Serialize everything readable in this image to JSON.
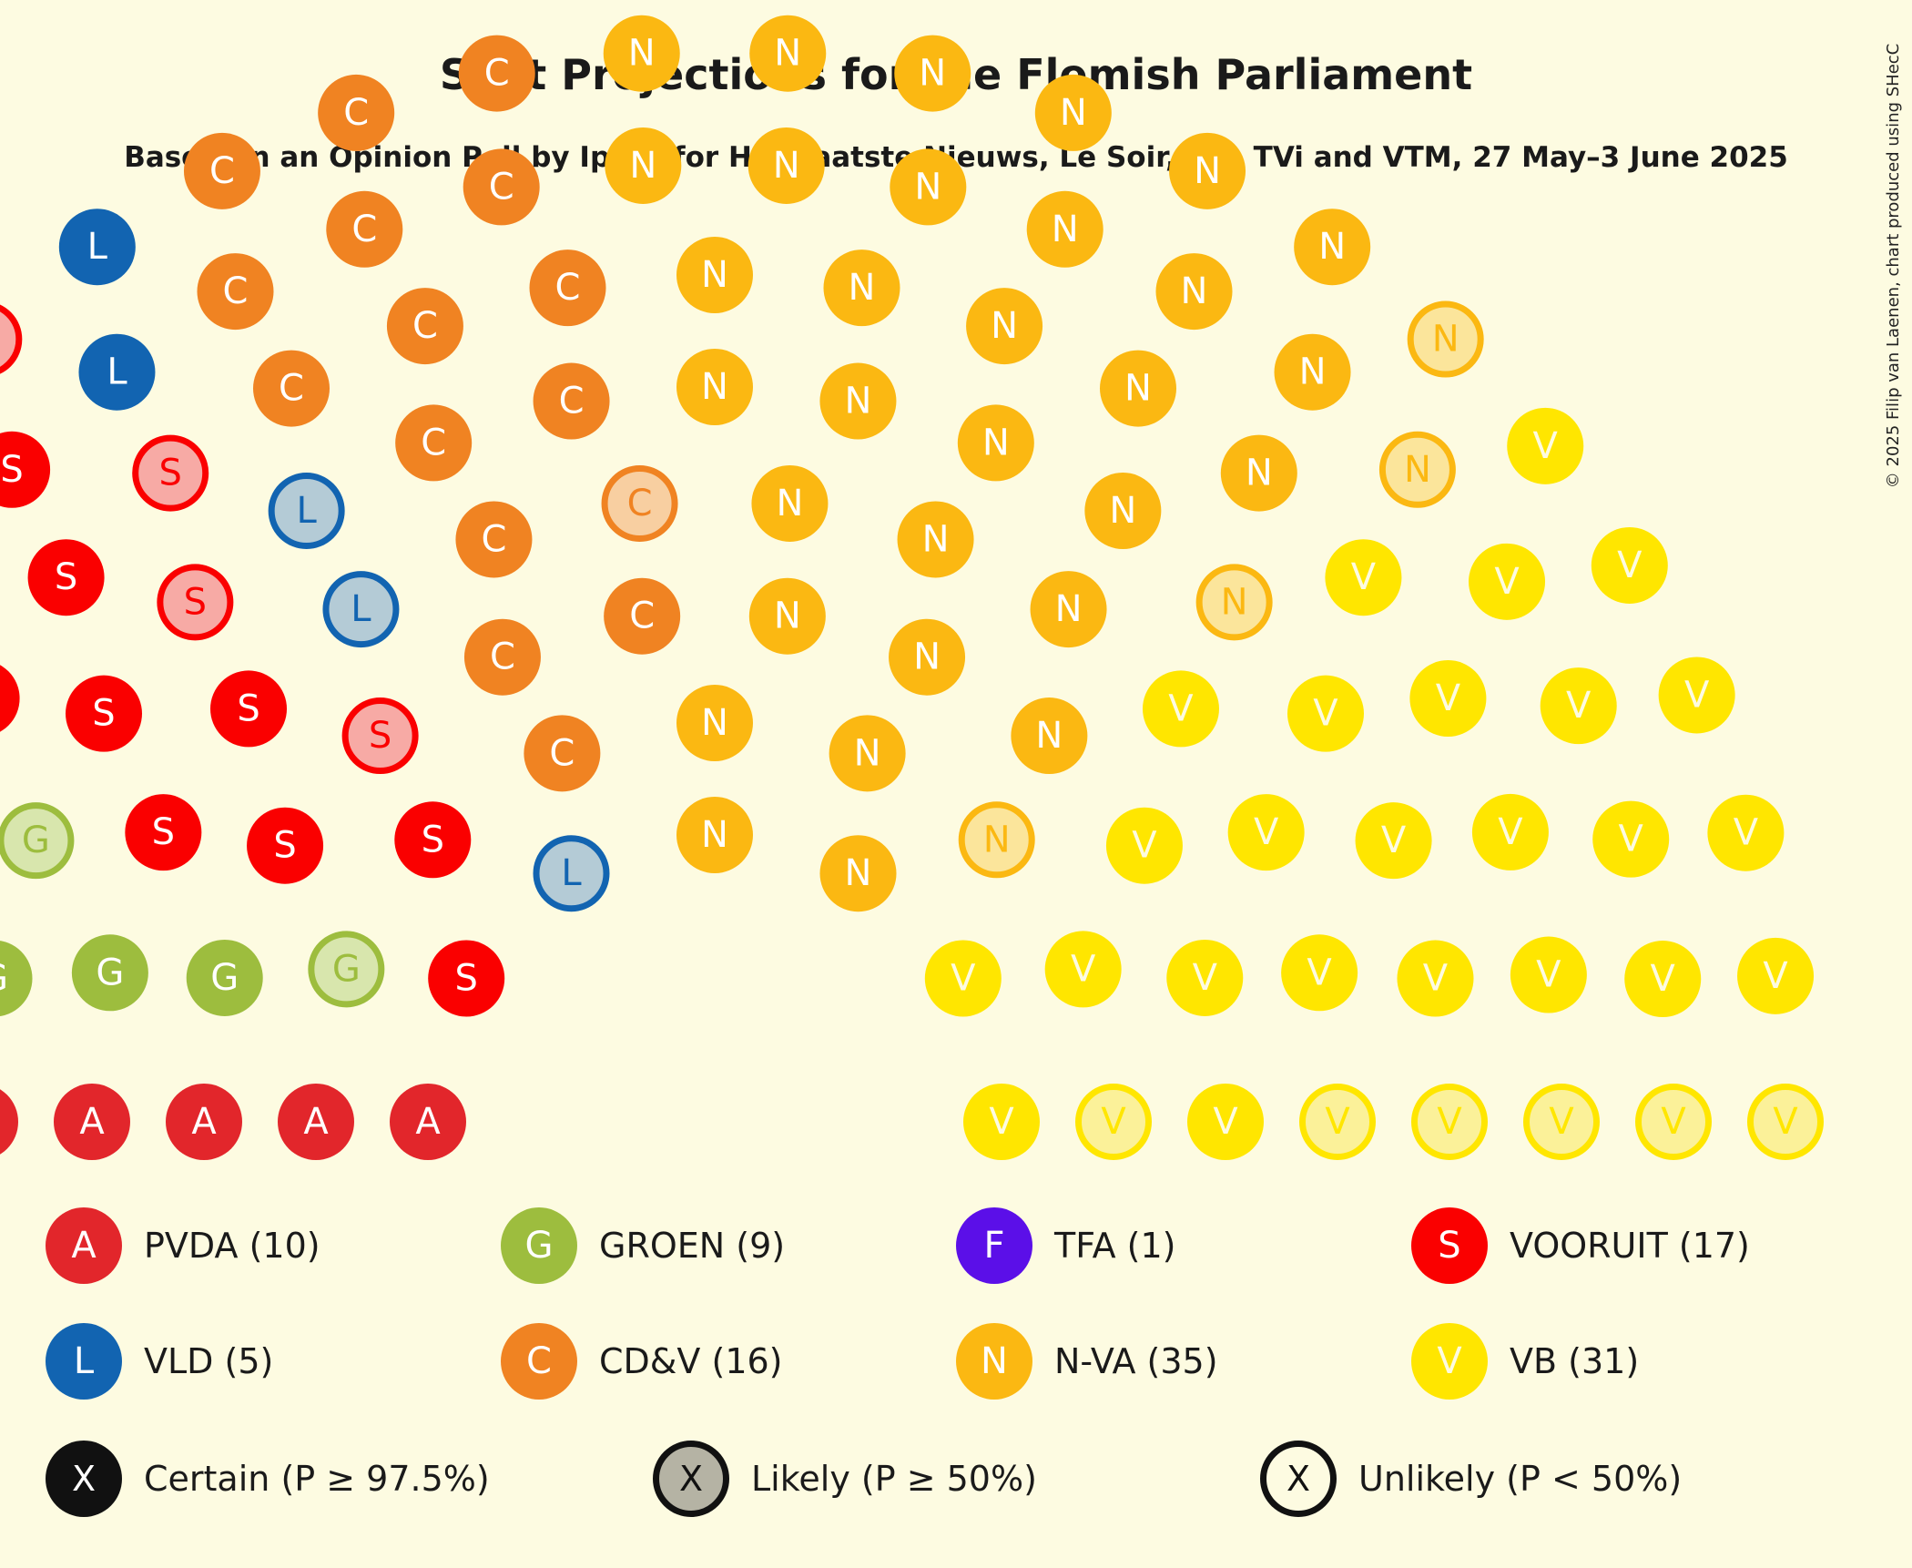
{
  "chart_data": {
    "type": "parliament",
    "title": "Seat Projections for the Flemish Parliament",
    "subtitle": "Based on an Opinion Poll by Ipsos for Het Laatste Nieuws, Le Soir, RTL TVi and VTM, 27 May–3 June 2025",
    "copyright": "© 2025 Filip van Laenen, chart produced using SHecC",
    "total_seats": 124,
    "parties": [
      {
        "letter": "A",
        "name": "PVDA",
        "seats": 10,
        "color": "#e2262b",
        "light": "#f4b0b0",
        "certain": 7,
        "likely": 0,
        "unlikely": 3
      },
      {
        "letter": "G",
        "name": "GROEN",
        "seats": 9,
        "color": "#9dbd3e",
        "light": "#d8e6ad",
        "certain": 7,
        "likely": 0,
        "unlikely": 2
      },
      {
        "letter": "F",
        "name": "TFA",
        "seats": 1,
        "color": "#5b0fe8",
        "light": "#c7b2f0",
        "certain": 0,
        "likely": 0,
        "unlikely": 1
      },
      {
        "letter": "S",
        "name": "VOORUIT",
        "seats": 17,
        "color": "#fa0000",
        "light": "#f7aaa5",
        "certain": 13,
        "likely": 0,
        "unlikely": 4
      },
      {
        "letter": "L",
        "name": "VLD",
        "seats": 5,
        "color": "#1264b1",
        "light": "#b4cbd6",
        "certain": 2,
        "likely": 0,
        "unlikely": 3
      },
      {
        "letter": "C",
        "name": "CD&V",
        "seats": 16,
        "color": "#f08322",
        "light": "#f8cfa1",
        "certain": 15,
        "likely": 0,
        "unlikely": 1
      },
      {
        "letter": "N",
        "name": "N-VA",
        "seats": 35,
        "color": "#fbb812",
        "light": "#fbe59b",
        "certain": 31,
        "likely": 0,
        "unlikely": 4
      },
      {
        "letter": "V",
        "name": "VB",
        "seats": 31,
        "color": "#ffe600",
        "light": "#fbf199",
        "certain": 25,
        "likely": 0,
        "unlikely": 6
      }
    ],
    "legend_parties": [
      {
        "letter": "A",
        "label": "PVDA (10)",
        "color": "#e2262b"
      },
      {
        "letter": "G",
        "label": "GROEN (9)",
        "color": "#9dbd3e"
      },
      {
        "letter": "F",
        "label": "TFA (1)",
        "color": "#5b0fe8"
      },
      {
        "letter": "S",
        "label": "VOORUIT (17)",
        "color": "#fa0000"
      },
      {
        "letter": "L",
        "label": "VLD (5)",
        "color": "#1264b1"
      },
      {
        "letter": "C",
        "label": "CD&V (16)",
        "color": "#f08322"
      },
      {
        "letter": "N",
        "label": "N-VA (35)",
        "color": "#fbb812"
      },
      {
        "letter": "V",
        "label": "VB (31)",
        "color": "#ffe600"
      }
    ],
    "legend_certainty": [
      {
        "letter": "X",
        "label": "Certain (P ≥ 97.5%)",
        "kind": "certain"
      },
      {
        "letter": "X",
        "label": "Likely (P ≥ 50%)",
        "kind": "likely"
      },
      {
        "letter": "X",
        "label": "Unlikely (P < 50%)",
        "kind": "unlikely"
      }
    ]
  }
}
